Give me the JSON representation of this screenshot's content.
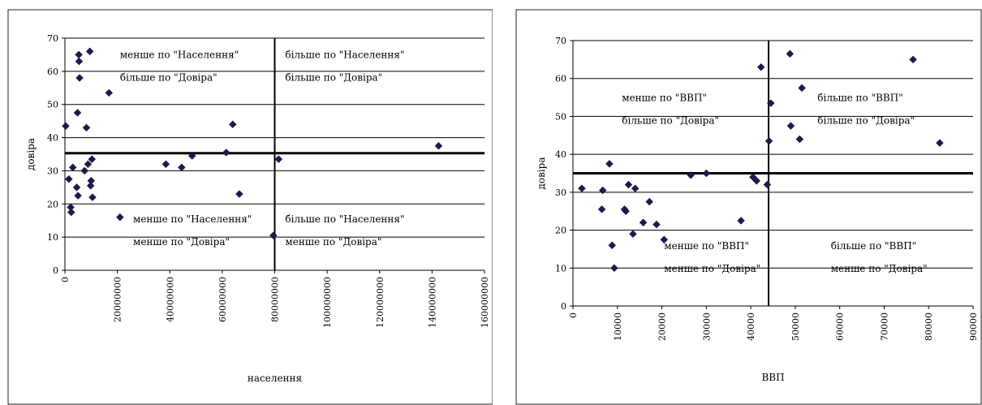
{
  "chart_data": [
    {
      "type": "scatter",
      "title": "",
      "xlabel": "населення",
      "ylabel": "довіра",
      "xlim": [
        0,
        160000000
      ],
      "ylim": [
        0,
        70
      ],
      "x_ticks": [
        0,
        20000000,
        40000000,
        60000000,
        80000000,
        100000000,
        120000000,
        140000000,
        160000000
      ],
      "x_tick_labels": [
        "0",
        "20000000",
        "40000000",
        "60000000",
        "80000000",
        "100000000",
        "120000000",
        "140000000",
        "160000000"
      ],
      "y_ticks": [
        0,
        10,
        20,
        30,
        40,
        50,
        60,
        70
      ],
      "y_tick_labels": [
        "0",
        "10",
        "20",
        "30",
        "40",
        "50",
        "60",
        "70"
      ],
      "grid": "horizontal",
      "divider_x": 80000000,
      "divider_y": 35.3,
      "quadrant_labels": [
        {
          "anchor": [
            21000000,
            64
          ],
          "lines": [
            "менше по \"Населення\"",
            "більше по \"Довіра\""
          ]
        },
        {
          "anchor": [
            84000000,
            64
          ],
          "lines": [
            "більше по \"Населення\"",
            "більше по \"Довіра\""
          ]
        },
        {
          "anchor": [
            26000000,
            14.5
          ],
          "lines": [
            "менше по \"Населення\"",
            "менше по \"Довіра\""
          ]
        },
        {
          "anchor": [
            84000000,
            14.5
          ],
          "lines": [
            "більше по \"Населення\"",
            "менше по \"Довіра\""
          ]
        }
      ],
      "points": [
        {
          "x": 300000,
          "y": 43.5
        },
        {
          "x": 1500000,
          "y": 27.5
        },
        {
          "x": 2200000,
          "y": 19
        },
        {
          "x": 2400000,
          "y": 17.5
        },
        {
          "x": 3000000,
          "y": 31
        },
        {
          "x": 4500000,
          "y": 25
        },
        {
          "x": 4800000,
          "y": 47.5
        },
        {
          "x": 5000000,
          "y": 22.5
        },
        {
          "x": 5300000,
          "y": 65
        },
        {
          "x": 5400000,
          "y": 63
        },
        {
          "x": 5600000,
          "y": 58
        },
        {
          "x": 7500000,
          "y": 30
        },
        {
          "x": 8200000,
          "y": 43
        },
        {
          "x": 8800000,
          "y": 32
        },
        {
          "x": 9500000,
          "y": 66
        },
        {
          "x": 9800000,
          "y": 25.5
        },
        {
          "x": 10000000,
          "y": 27
        },
        {
          "x": 10300000,
          "y": 33.5
        },
        {
          "x": 10500000,
          "y": 22
        },
        {
          "x": 16800000,
          "y": 53.5
        },
        {
          "x": 21000000,
          "y": 16
        },
        {
          "x": 38500000,
          "y": 32
        },
        {
          "x": 44500000,
          "y": 31
        },
        {
          "x": 48500000,
          "y": 34.5
        },
        {
          "x": 61500000,
          "y": 35.5
        },
        {
          "x": 64000000,
          "y": 44
        },
        {
          "x": 66500000,
          "y": 23
        },
        {
          "x": 79500000,
          "y": 10.5
        },
        {
          "x": 81500000,
          "y": 33.5
        },
        {
          "x": 142500000,
          "y": 37.5
        }
      ]
    },
    {
      "type": "scatter",
      "title": "",
      "xlabel": "ВВП",
      "ylabel": "довіра",
      "xlim": [
        0,
        90000
      ],
      "ylim": [
        0,
        70
      ],
      "x_ticks": [
        0,
        10000,
        20000,
        30000,
        40000,
        50000,
        60000,
        70000,
        80000,
        90000
      ],
      "x_tick_labels": [
        "0",
        "10000",
        "20000",
        "30000",
        "40000",
        "50000",
        "60000",
        "70000",
        "80000",
        "90000"
      ],
      "y_ticks": [
        0,
        10,
        20,
        30,
        40,
        50,
        60,
        70
      ],
      "y_tick_labels": [
        "0",
        "10",
        "20",
        "30",
        "40",
        "50",
        "60",
        "70"
      ],
      "grid": "horizontal",
      "divider_x": 44000,
      "divider_y": 35,
      "quadrant_labels": [
        {
          "anchor": [
            11000,
            54
          ],
          "lines": [
            "менше по \"ВВП\"",
            "більше по \"Довіра\""
          ]
        },
        {
          "anchor": [
            55000,
            54
          ],
          "lines": [
            "більше по \"ВВП\"",
            "більше по \"Довіра\""
          ]
        },
        {
          "anchor": [
            20500,
            15
          ],
          "lines": [
            "менше по \"ВВП\"",
            "менше по \"Довіра\""
          ]
        },
        {
          "anchor": [
            58000,
            15
          ],
          "lines": [
            "більше по \"ВВП\"",
            "менше по \"Довіра\""
          ]
        }
      ],
      "points": [
        {
          "x": 2000,
          "y": 31
        },
        {
          "x": 6500,
          "y": 25.5
        },
        {
          "x": 6700,
          "y": 30.5
        },
        {
          "x": 8200,
          "y": 37.5
        },
        {
          "x": 8800,
          "y": 16
        },
        {
          "x": 9300,
          "y": 10
        },
        {
          "x": 11600,
          "y": 25.5
        },
        {
          "x": 11900,
          "y": 25
        },
        {
          "x": 12500,
          "y": 32
        },
        {
          "x": 13500,
          "y": 19
        },
        {
          "x": 14000,
          "y": 31
        },
        {
          "x": 15800,
          "y": 22
        },
        {
          "x": 17200,
          "y": 27.5
        },
        {
          "x": 18800,
          "y": 21.5
        },
        {
          "x": 20500,
          "y": 17.5
        },
        {
          "x": 26500,
          "y": 34.5
        },
        {
          "x": 30000,
          "y": 35
        },
        {
          "x": 37800,
          "y": 22.5
        },
        {
          "x": 40500,
          "y": 34
        },
        {
          "x": 41300,
          "y": 33
        },
        {
          "x": 42300,
          "y": 63
        },
        {
          "x": 43700,
          "y": 32
        },
        {
          "x": 44100,
          "y": 43.5
        },
        {
          "x": 44500,
          "y": 53.5
        },
        {
          "x": 48800,
          "y": 66.5
        },
        {
          "x": 49000,
          "y": 47.5
        },
        {
          "x": 51000,
          "y": 44
        },
        {
          "x": 51500,
          "y": 57.5
        },
        {
          "x": 76500,
          "y": 65
        },
        {
          "x": 82500,
          "y": 43
        }
      ]
    }
  ]
}
